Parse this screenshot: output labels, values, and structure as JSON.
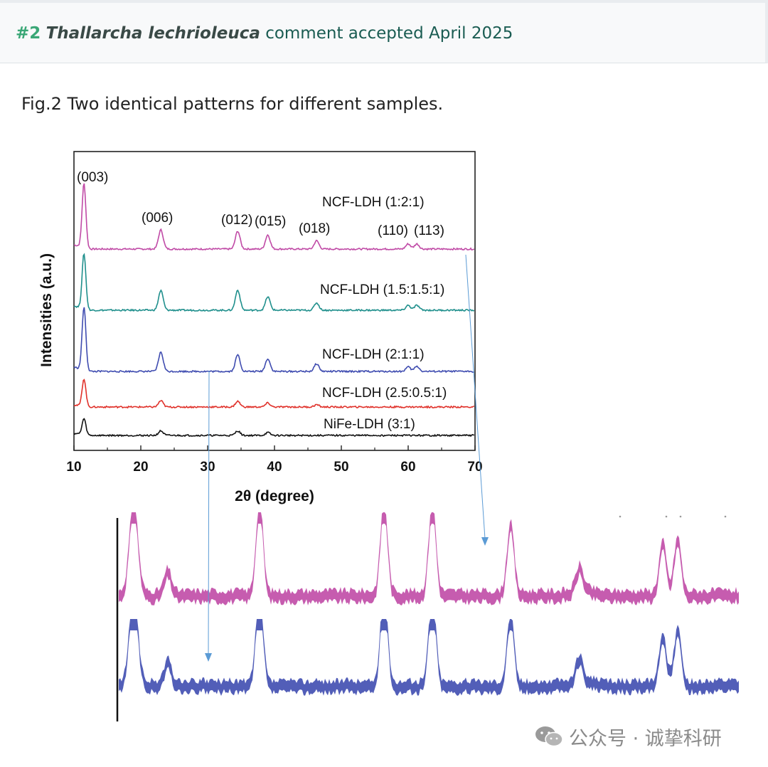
{
  "header": {
    "number": "#2",
    "author": "Thallarcha lechrioleuca",
    "status": "comment accepted April 2025"
  },
  "caption": "Fig.2 Two identical patterns for different samples.",
  "watermark": {
    "text": "公众号 · 诚挚科研",
    "icon": "wechat-icon"
  },
  "colors": {
    "magenta": "#c04aa6",
    "teal": "#1f8f8c",
    "blue": "#3f4cb0",
    "red": "#e0312a",
    "black": "#111111",
    "accent_green": "#3aa776",
    "arrow": "#5b9bd5"
  },
  "chart_data": [
    {
      "type": "line",
      "xlabel": "2θ (degree)",
      "ylabel": "Intensities (a.u.)",
      "xlim": [
        10,
        70
      ],
      "xticks": [
        "10",
        "20",
        "30",
        "40",
        "50",
        "60",
        "70"
      ],
      "peak_labels": [
        {
          "label": "(003)",
          "x": 11.5
        },
        {
          "label": "(006)",
          "x": 23
        },
        {
          "label": "(012)",
          "x": 34.5
        },
        {
          "label": "(015)",
          "x": 39
        },
        {
          "label": "(018)",
          "x": 46.5
        },
        {
          "label": "(110)",
          "x": 60
        },
        {
          "label": "(113)",
          "x": 61.5
        }
      ],
      "series": [
        {
          "name": "NCF-LDH (1:2:1)",
          "color": "#c04aa6",
          "peaks": [
            [
              11.5,
              1.0
            ],
            [
              23,
              0.3
            ],
            [
              34.5,
              0.28
            ],
            [
              39,
              0.22
            ],
            [
              46.3,
              0.13
            ],
            [
              60,
              0.08
            ],
            [
              61.3,
              0.08
            ]
          ]
        },
        {
          "name": "NCF-LDH (1.5:1.5:1)",
          "color": "#1f8f8c",
          "peaks": [
            [
              11.5,
              0.9
            ],
            [
              23,
              0.32
            ],
            [
              34.5,
              0.33
            ],
            [
              39,
              0.22
            ],
            [
              46.3,
              0.12
            ],
            [
              60,
              0.08
            ],
            [
              61.3,
              0.08
            ]
          ]
        },
        {
          "name": "NCF-LDH (2:1:1)",
          "color": "#3f4cb0",
          "peaks": [
            [
              11.5,
              0.98
            ],
            [
              23,
              0.3
            ],
            [
              34.5,
              0.26
            ],
            [
              39,
              0.2
            ],
            [
              46.3,
              0.12
            ],
            [
              60,
              0.07
            ],
            [
              61.3,
              0.08
            ]
          ]
        },
        {
          "name": "NCF-LDH (2.5:0.5:1)",
          "color": "#e0312a",
          "peaks": [
            [
              11.5,
              0.48
            ],
            [
              23,
              0.11
            ],
            [
              34.5,
              0.1
            ],
            [
              39,
              0.07
            ],
            [
              46.3,
              0.04
            ]
          ]
        },
        {
          "name": "NiFe-LDH (3:1)",
          "color": "#111111",
          "peaks": [
            [
              11.5,
              0.28
            ],
            [
              23,
              0.08
            ],
            [
              34.5,
              0.08
            ],
            [
              39,
              0.05
            ]
          ]
        }
      ]
    },
    {
      "type": "line",
      "description_free": true,
      "series": [
        {
          "color": "#c04aa6",
          "peaks": [
            [
              1,
              1.0
            ],
            [
              2,
              0.25
            ],
            [
              3,
              1.0
            ],
            [
              4,
              1.0
            ],
            [
              5,
              1.0
            ],
            [
              6,
              0.75
            ],
            [
              7,
              0.25
            ],
            [
              8,
              0.55
            ],
            [
              9,
              0.6
            ]
          ]
        },
        {
          "color": "#3f4cb0",
          "peaks": [
            [
              1,
              1.0
            ],
            [
              2,
              0.25
            ],
            [
              3,
              1.0
            ],
            [
              4,
              1.0
            ],
            [
              5,
              1.0
            ],
            [
              6,
              0.75
            ],
            [
              7,
              0.25
            ],
            [
              8,
              0.55
            ],
            [
              9,
              0.6
            ]
          ]
        }
      ]
    }
  ]
}
